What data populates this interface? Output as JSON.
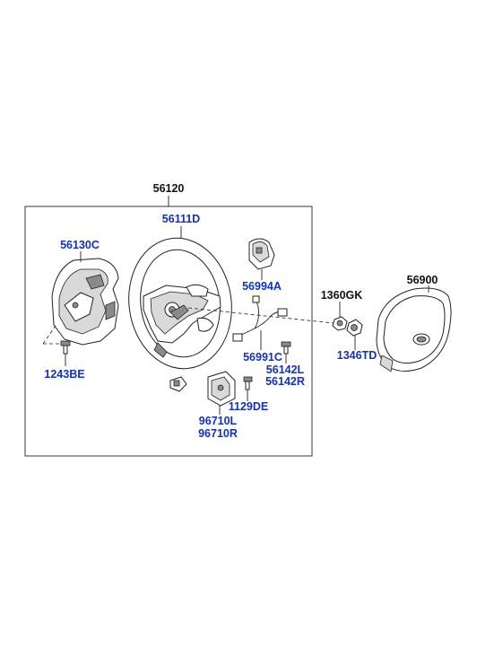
{
  "colors": {
    "callout_blue": "#1432b4",
    "callout_black": "#111111",
    "line": "#222222"
  },
  "labels": {
    "p56120": "56120",
    "p56111D": "56111D",
    "p56130C": "56130C",
    "p56994A": "56994A",
    "p1360GK": "1360GK",
    "p56900": "56900",
    "p1346TD": "1346TD",
    "p1243BE": "1243BE",
    "p56991C": "56991C",
    "p56142L": "56142L",
    "p56142R": "56142R",
    "p1129DE": "1129DE",
    "p96710L": "96710L",
    "p96710R": "96710R"
  }
}
